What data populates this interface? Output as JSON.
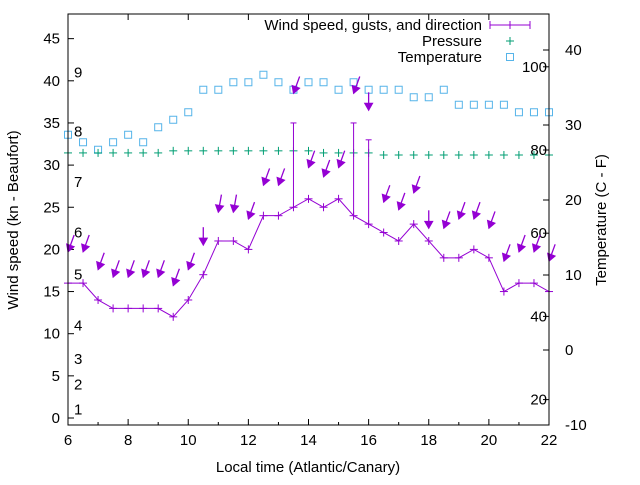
{
  "chart_data": {
    "type": "line",
    "xlabel": "Local time (Atlantic/Canary)",
    "ylabel": "Wind speed (kn - Beaufort)",
    "y2label": "Temperature (C - F)",
    "xlim": [
      6,
      22
    ],
    "ylim": [
      -1,
      48
    ],
    "y2lim": [
      -10,
      45
    ],
    "x_ticks": [
      6,
      8,
      10,
      12,
      14,
      16,
      18,
      20,
      22
    ],
    "y_ticks": [
      0,
      5,
      10,
      15,
      20,
      25,
      30,
      35,
      40,
      45
    ],
    "y2_ticks": [
      -10,
      0,
      10,
      20,
      30,
      40
    ],
    "legend_position": "top-right",
    "legend": [
      "Wind speed, gusts, and direction",
      "Pressure",
      "Temperature"
    ],
    "colors": {
      "wind": "#9400d3",
      "pressure": "#009e73",
      "temperature": "#56b4e9"
    },
    "x": [
      6,
      6.5,
      7,
      7.5,
      8,
      8.5,
      9,
      9.5,
      10,
      10.5,
      11,
      11.5,
      12,
      12.5,
      13,
      13.5,
      14,
      14.5,
      15,
      15.5,
      16,
      16.5,
      17,
      17.5,
      18,
      18.5,
      19,
      19.5,
      20,
      20.5,
      21,
      21.5,
      22
    ],
    "wind_speed": [
      16,
      16,
      14,
      13,
      13,
      13,
      13,
      12,
      14,
      17,
      21,
      21,
      20,
      24,
      24,
      25,
      26,
      25,
      26,
      24,
      23,
      22,
      21,
      23,
      21,
      19,
      19,
      20,
      19,
      15,
      16,
      16,
      15
    ],
    "gusts": [
      {
        "x": 13.5,
        "value": 35
      },
      {
        "x": 15.5,
        "value": 35
      },
      {
        "x": 16,
        "value": 33
      }
    ],
    "direction_arrow_level": [
      19.7,
      19.7,
      17.6,
      16.7,
      16.7,
      16.7,
      16.7,
      15.7,
      17.6,
      20.5,
      24.4,
      24.4,
      23.6,
      27.6,
      27.6,
      38.5,
      29.7,
      28.6,
      29.7,
      38.5,
      36.5,
      25.6,
      24.7,
      26.7,
      22.5,
      22.5,
      23.6,
      23.6,
      22.5,
      18.6,
      19.7,
      19.7,
      18.6
    ],
    "direction_from_deg": [
      20,
      20,
      20,
      20,
      20,
      20,
      20,
      20,
      20,
      0,
      10,
      10,
      20,
      20,
      20,
      20,
      20,
      20,
      20,
      20,
      0,
      20,
      20,
      20,
      0,
      20,
      20,
      20,
      20,
      20,
      20,
      20,
      20
    ],
    "temperature_c": [
      28.7,
      27.7,
      26.7,
      27.7,
      28.7,
      27.7,
      29.7,
      30.7,
      31.7,
      34.7,
      34.7,
      35.7,
      35.7,
      36.7,
      35.7,
      34.7,
      35.7,
      35.7,
      34.7,
      35.7,
      34.7,
      34.7,
      34.7,
      33.7,
      33.7,
      34.7,
      32.7,
      32.7,
      32.7,
      32.7,
      31.7,
      31.7,
      31.7
    ],
    "pressure": [
      79.3,
      79.3,
      79.3,
      79.3,
      79.3,
      79.3,
      79.3,
      79.8,
      79.8,
      79.8,
      79.8,
      79.8,
      79.8,
      79.8,
      79.8,
      79.8,
      79.8,
      79.3,
      79.3,
      79.3,
      79.3,
      78.8,
      78.8,
      78.8,
      78.8,
      78.8,
      78.8,
      78.8,
      78.8,
      78.8,
      78.8,
      78.8,
      78.8
    ],
    "pressure_scale_labels": [
      100,
      80,
      60,
      40,
      20
    ],
    "beaufort_labels": [
      {
        "label": "1",
        "kn": 1
      },
      {
        "label": "2",
        "kn": 4
      },
      {
        "label": "3",
        "kn": 7
      },
      {
        "label": "4",
        "kn": 11
      },
      {
        "label": "5",
        "kn": 17
      },
      {
        "label": "6",
        "kn": 22
      },
      {
        "label": "7",
        "kn": 28
      },
      {
        "label": "8",
        "kn": 34
      },
      {
        "label": "9",
        "kn": 41
      }
    ]
  }
}
